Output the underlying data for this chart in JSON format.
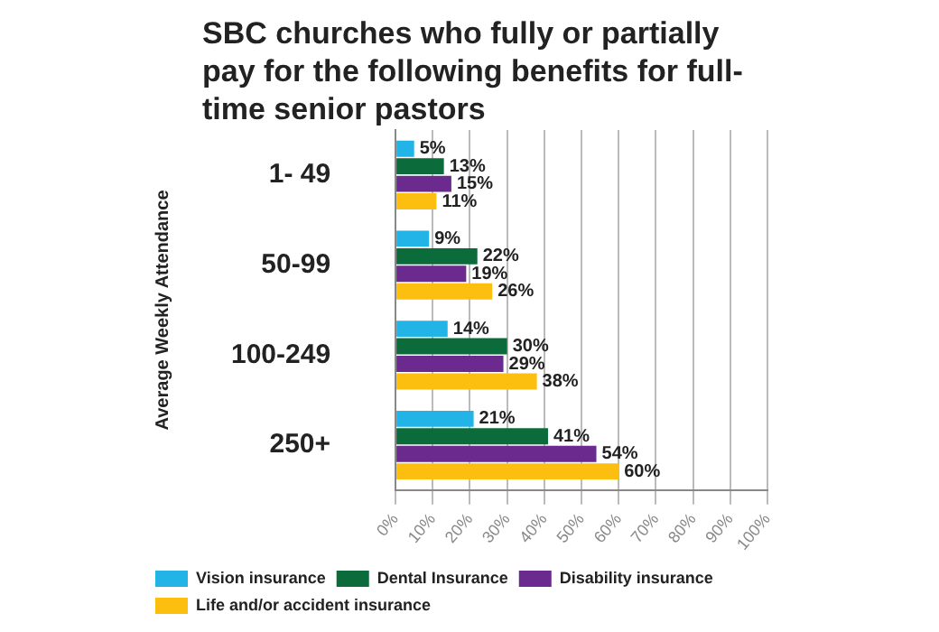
{
  "chart_data": {
    "type": "bar",
    "orientation": "horizontal",
    "title": "SBC churches who fully or partially pay for the following benefits for full-time senior pastors",
    "ylabel": "Average Weekly Attendance",
    "categories": [
      "1- 49",
      "50-99",
      "100-249",
      "250+"
    ],
    "series": [
      {
        "name": "Vision insurance",
        "color": "#22b4e6",
        "values": [
          5,
          9,
          14,
          21
        ],
        "value_labels": [
          "5%",
          "9%",
          "14%",
          "21%"
        ]
      },
      {
        "name": "Dental Insurance",
        "color": "#0b6b3a",
        "values": [
          13,
          22,
          30,
          41
        ],
        "value_labels": [
          "13%",
          "22%",
          "30%",
          "41%"
        ]
      },
      {
        "name": "Disability insurance",
        "color": "#6b2a8e",
        "values": [
          15,
          19,
          29,
          54
        ],
        "value_labels": [
          "15%",
          "19%",
          "29%",
          "54%"
        ]
      },
      {
        "name": "Life and/or accident insurance",
        "color": "#fcbf0f",
        "values": [
          11,
          26,
          38,
          60
        ],
        "value_labels": [
          "11%",
          "26%",
          "38%",
          "60%"
        ]
      }
    ],
    "xlim": [
      0,
      100
    ],
    "xticks": [
      {
        "value": 0,
        "label": "0%"
      },
      {
        "value": 10,
        "label": "10%"
      },
      {
        "value": 20,
        "label": "20%"
      },
      {
        "value": 30,
        "label": "30%"
      },
      {
        "value": 40,
        "label": "40%"
      },
      {
        "value": 50,
        "label": "50%"
      },
      {
        "value": 60,
        "label": "60%"
      },
      {
        "value": 70,
        "label": "70%"
      },
      {
        "value": 80,
        "label": "80%"
      },
      {
        "value": 90,
        "label": "90%"
      },
      {
        "value": 100,
        "label": "100%"
      }
    ],
    "grid": "x",
    "legend": "bottom left"
  }
}
